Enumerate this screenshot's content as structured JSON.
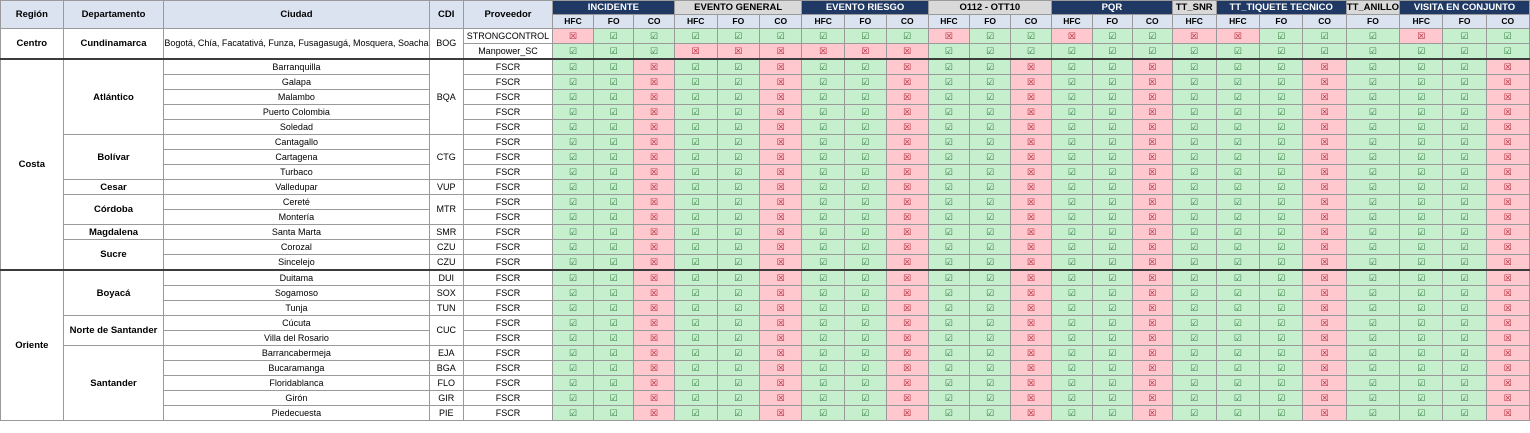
{
  "headers": {
    "region": "Región",
    "departamento": "Departamento",
    "ciudad": "Ciudad",
    "cdi": "CDI",
    "proveedor": "Proveedor"
  },
  "groups": [
    {
      "label": "INCIDENTE",
      "color": "#1f3864",
      "subs": [
        "HFC",
        "FO",
        "CO"
      ]
    },
    {
      "label": "EVENTO GENERAL",
      "color": "#d9d9d9",
      "subs": [
        "HFC",
        "FO",
        "CO"
      ]
    },
    {
      "label": "EVENTO RIESGO",
      "color": "#1f3864",
      "subs": [
        "HFC",
        "FO",
        "CO"
      ]
    },
    {
      "label": "O112 - OTT10",
      "color": "#d9d9d9",
      "subs": [
        "HFC",
        "FO",
        "CO"
      ]
    },
    {
      "label": "PQR",
      "color": "#1f3864",
      "subs": [
        "HFC",
        "FO",
        "CO"
      ]
    },
    {
      "label": "TT_SNR",
      "color": "#d9d9d9",
      "subs": [
        "HFC"
      ]
    },
    {
      "label": "TT_TIQUETE TECNICO",
      "color": "#1f3864",
      "subs": [
        "HFC",
        "FO",
        "CO"
      ]
    },
    {
      "label": "TT_ANILLO",
      "color": "#d9d9d9",
      "subs": [
        "FO"
      ]
    },
    {
      "label": "VISITA EN CONJUNTO",
      "color": "#1f3864",
      "subs": [
        "HFC",
        "FO",
        "CO"
      ]
    }
  ],
  "icons": {
    "check": "checkbox-checked-icon",
    "cross": "checkbox-crossed-icon"
  },
  "colors": {
    "ok_fill": "#c6efce",
    "no_fill": "#ffc7ce",
    "dark_header": "#1f3864",
    "light_header": "#d9d9d9"
  },
  "regions": [
    {
      "name": "Centro",
      "departments": [
        {
          "name": "Cundinamarca",
          "rows": [
            {
              "city": "Bogotá, Chía, Facatativá, Funza, Fusagasugá, Mosquera, Soacha",
              "cdi": "BOG",
              "proveedor": "STRONGCONTROL",
              "pattern": "xvv vvv vvv xvv xvv x xvv v xvv"
            },
            {
              "city": "",
              "cdi": "",
              "proveedor": "Manpower_SC",
              "pattern": "vvv xxx xxx vvv vvv v vvv v vvv"
            }
          ]
        }
      ]
    },
    {
      "name": "Costa",
      "departments": [
        {
          "name": "Atlántico",
          "rows": [
            {
              "city": "Barranquilla",
              "cdi": "BQA",
              "proveedor": "FSCR",
              "pattern": "vvx vvx vvx vvx vvx v vvx v vvx"
            },
            {
              "city": "Galapa",
              "cdi": "",
              "proveedor": "FSCR",
              "pattern": "vvx vvx vvx vvx vvx v vvx v vvx"
            },
            {
              "city": "Malambo",
              "cdi": "",
              "proveedor": "FSCR",
              "pattern": "vvx vvx vvx vvx vvx v vvx v vvx"
            },
            {
              "city": "Puerto Colombia",
              "cdi": "",
              "proveedor": "FSCR",
              "pattern": "vvx vvx vvx vvx vvx v vvx v vvx"
            },
            {
              "city": "Soledad",
              "cdi": "",
              "proveedor": "FSCR",
              "pattern": "vvx vvx vvx vvx vvx v vvx v vvx"
            }
          ]
        },
        {
          "name": "Bolívar",
          "rows": [
            {
              "city": "Cantagallo",
              "cdi": "CTG",
              "proveedor": "FSCR",
              "pattern": "vvx vvx vvx vvx vvx v vvx v vvx"
            },
            {
              "city": "Cartagena",
              "cdi": "",
              "proveedor": "FSCR",
              "pattern": "vvx vvx vvx vvx vvx v vvx v vvx"
            },
            {
              "city": "Turbaco",
              "cdi": "",
              "proveedor": "FSCR",
              "pattern": "vvx vvx vvx vvx vvx v vvx v vvx"
            }
          ]
        },
        {
          "name": "Cesar",
          "rows": [
            {
              "city": "Valledupar",
              "cdi": "VUP",
              "proveedor": "FSCR",
              "pattern": "vvx vvx vvx vvx vvx v vvx v vvx"
            }
          ]
        },
        {
          "name": "Córdoba",
          "rows": [
            {
              "city": "Cereté",
              "cdi": "MTR",
              "proveedor": "FSCR",
              "pattern": "vvx vvx vvx vvx vvx v vvx v vvx"
            },
            {
              "city": "Montería",
              "cdi": "",
              "proveedor": "FSCR",
              "pattern": "vvx vvx vvx vvx vvx v vvx v vvx"
            }
          ]
        },
        {
          "name": "Magdalena",
          "rows": [
            {
              "city": "Santa Marta",
              "cdi": "SMR",
              "proveedor": "FSCR",
              "pattern": "vvx vvx vvx vvx vvx v vvx v vvx"
            }
          ]
        },
        {
          "name": "Sucre",
          "rows": [
            {
              "city": "Corozal",
              "cdi": "CZU",
              "proveedor": "FSCR",
              "pattern": "vvx vvx vvx vvx vvx v vvx v vvx"
            },
            {
              "city": "Sincelejo",
              "cdi": "CZU",
              "proveedor": "FSCR",
              "pattern": "vvx vvx vvx vvx vvx v vvx v vvx"
            }
          ]
        }
      ]
    },
    {
      "name": "Oriente",
      "departments": [
        {
          "name": "Boyacá",
          "rows": [
            {
              "city": "Duitama",
              "cdi": "DUI",
              "proveedor": "FSCR",
              "pattern": "vvx vvx vvx vvx vvx v vvx v vvx"
            },
            {
              "city": "Sogamoso",
              "cdi": "SOX",
              "proveedor": "FSCR",
              "pattern": "vvx vvx vvx vvx vvx v vvx v vvx"
            },
            {
              "city": "Tunja",
              "cdi": "TUN",
              "proveedor": "FSCR",
              "pattern": "vvx vvx vvx vvx vvx v vvx v vvx"
            }
          ]
        },
        {
          "name": "Norte de Santander",
          "rows": [
            {
              "city": "Cúcuta",
              "cdi": "CUC",
              "proveedor": "FSCR",
              "pattern": "vvx vvx vvx vvx vvx v vvx v vvx"
            },
            {
              "city": "Villa del Rosario",
              "cdi": "",
              "proveedor": "FSCR",
              "pattern": "vvx vvx vvx vvx vvx v vvx v vvx"
            }
          ]
        },
        {
          "name": "Santander",
          "rows": [
            {
              "city": "Barrancabermeja",
              "cdi": "EJA",
              "proveedor": "FSCR",
              "pattern": "vvx vvx vvx vvx vvx v vvx v vvx"
            },
            {
              "city": "Bucaramanga",
              "cdi": "BGA",
              "proveedor": "FSCR",
              "pattern": "vvx vvx vvx vvx vvx v vvx v vvx"
            },
            {
              "city": "Floridablanca",
              "cdi": "FLO",
              "proveedor": "FSCR",
              "pattern": "vvx vvx vvx vvx vvx v vvx v vvx"
            },
            {
              "city": "Girón",
              "cdi": "GIR",
              "proveedor": "FSCR",
              "pattern": "vvx vvx vvx vvx vvx v vvx v vvx"
            },
            {
              "city": "Piedecuesta",
              "cdi": "PIE",
              "proveedor": "FSCR",
              "pattern": "vvx vvx vvx vvx vvx v vvx v vvx"
            }
          ]
        }
      ]
    }
  ]
}
